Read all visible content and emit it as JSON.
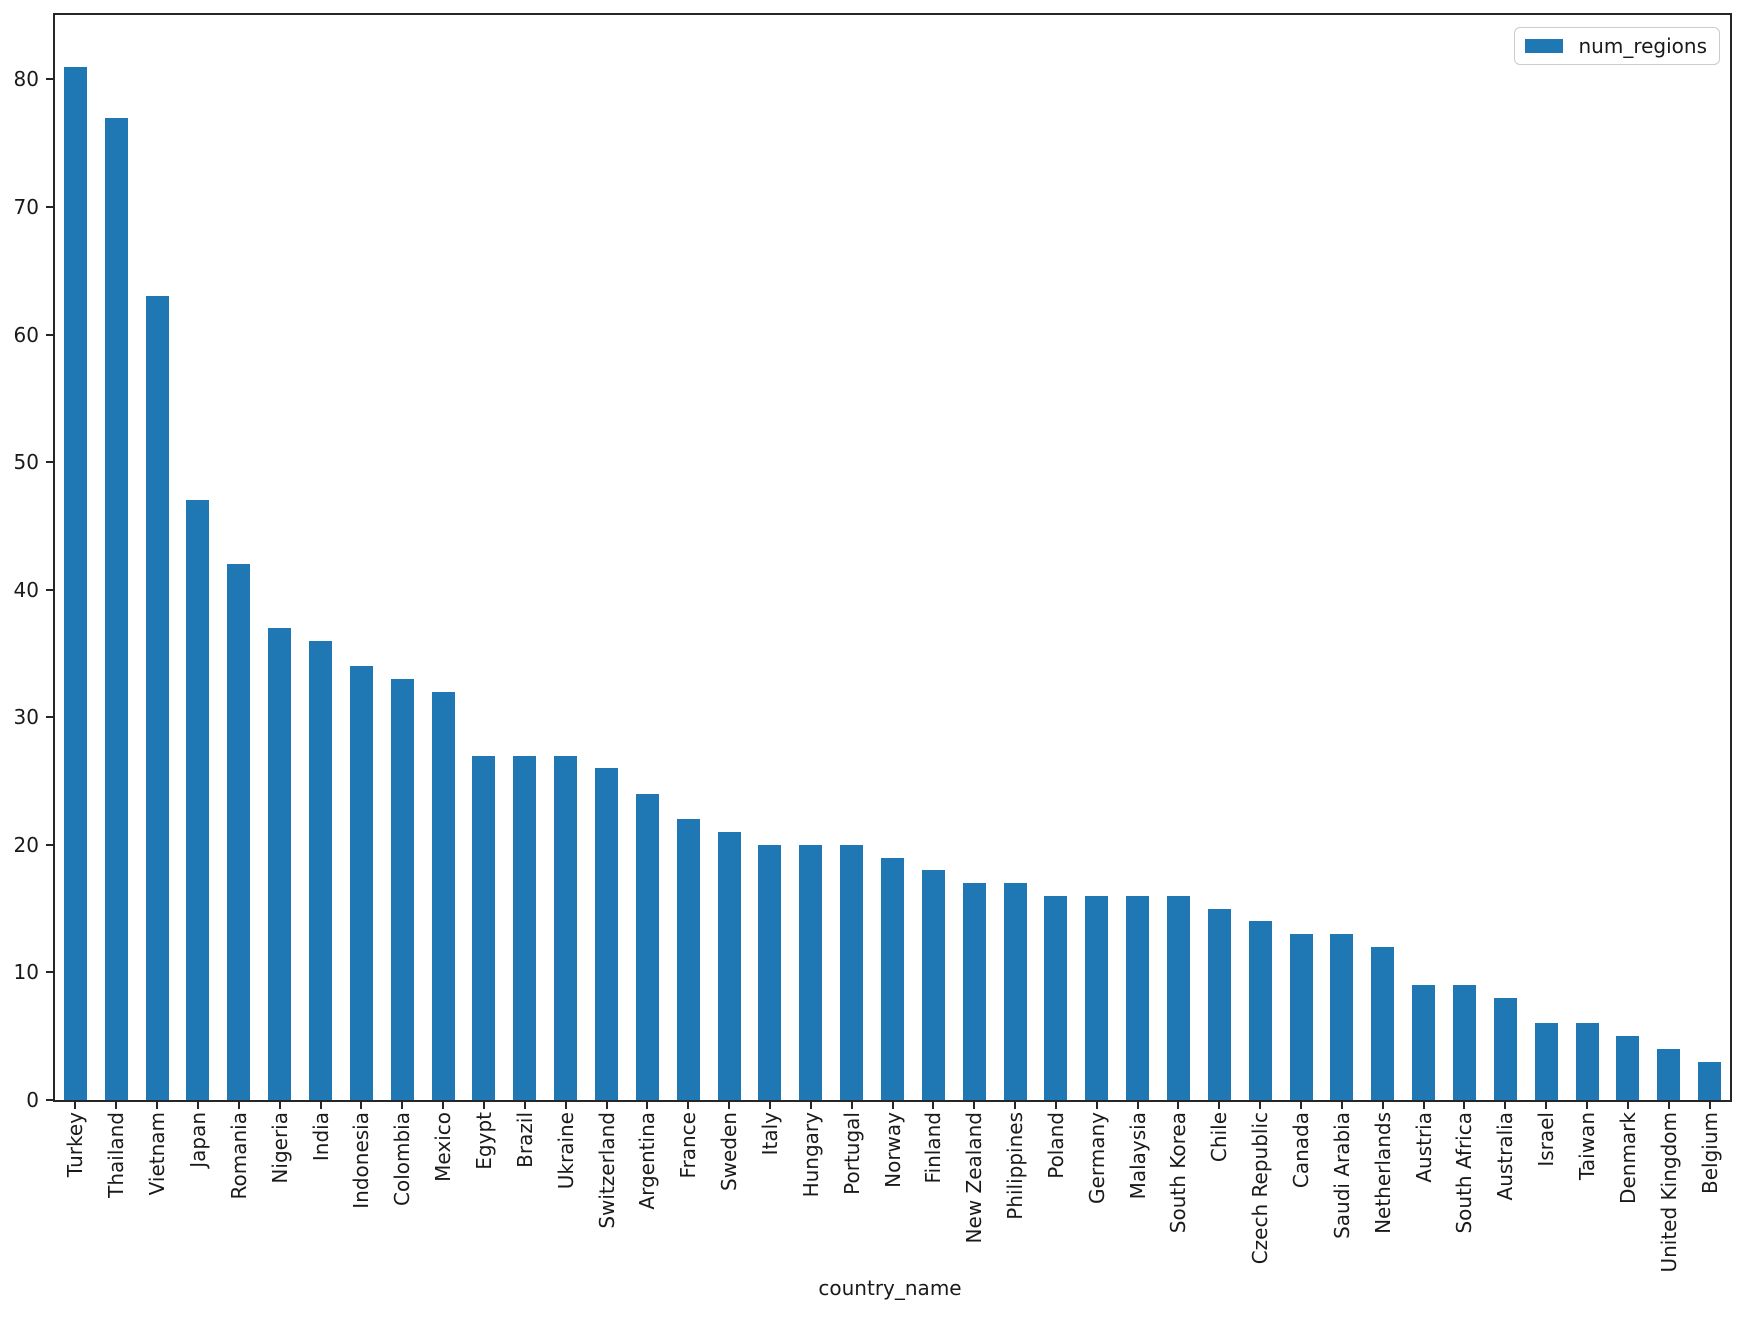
{
  "chart_data": {
    "type": "bar",
    "title": "",
    "xlabel": "country_name",
    "ylabel": "",
    "legend": {
      "label": "num_regions",
      "position": "upper right"
    },
    "bar_color": "#1f77b4",
    "grid": false,
    "x_tick_rotation": 90,
    "ylim": [
      0,
      85.05
    ],
    "yticks": [
      0,
      10,
      20,
      30,
      40,
      50,
      60,
      70,
      80
    ],
    "categories": [
      "Turkey",
      "Thailand",
      "Vietnam",
      "Japan",
      "Romania",
      "Nigeria",
      "India",
      "Indonesia",
      "Colombia",
      "Mexico",
      "Egypt",
      "Brazil",
      "Ukraine",
      "Switzerland",
      "Argentina",
      "France",
      "Sweden",
      "Italy",
      "Hungary",
      "Portugal",
      "Norway",
      "Finland",
      "New Zealand",
      "Philippines",
      "Poland",
      "Germany",
      "Malaysia",
      "South Korea",
      "Chile",
      "Czech Republic",
      "Canada",
      "Saudi Arabia",
      "Netherlands",
      "Austria",
      "South Africa",
      "Australia",
      "Israel",
      "Taiwan",
      "Denmark",
      "United Kingdom",
      "Belgium"
    ],
    "values": [
      81,
      77,
      63,
      47,
      42,
      37,
      36,
      34,
      33,
      32,
      27,
      27,
      27,
      26,
      24,
      22,
      21,
      20,
      20,
      20,
      19,
      18,
      17,
      17,
      16,
      16,
      16,
      16,
      15,
      14,
      13,
      13,
      12,
      9,
      9,
      8,
      6,
      6,
      5,
      4,
      3
    ]
  }
}
